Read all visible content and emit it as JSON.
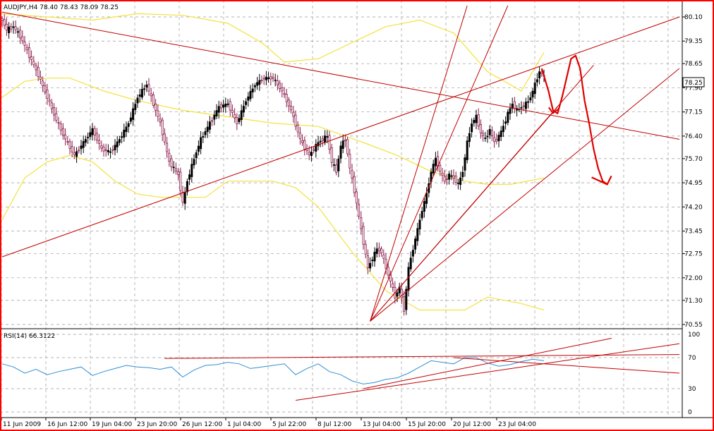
{
  "chart_data": [
    {
      "type": "candlestick",
      "header": "AUDJPY,H4  78.40 78.43 78.09 78.25",
      "ylim": [
        70.55,
        80.45
      ],
      "y_ticks": [
        "80.10",
        "79.35",
        "78.65",
        "77.90",
        "77.15",
        "76.40",
        "75.70",
        "74.95",
        "74.20",
        "73.45",
        "72.75",
        "72.00",
        "71.30",
        "70.55"
      ],
      "current_price": "78.25",
      "x_ticks": [
        "11 Jun 2009",
        "16 Jun 12:00",
        "19 Jun 04:00",
        "23 Jun 20:00",
        "26 Jun 12:00",
        "1 Jul 04:00",
        "5 Jul 22:00",
        "8 Jul 12:00",
        "13 Jul 04:00",
        "15 Jul 20:00",
        "20 Jul 12:00",
        "23 Jul 04:00"
      ],
      "grid": true,
      "series": [
        {
          "kind": "close-path",
          "points": [
            [
              0,
              80.0
            ],
            [
              2,
              79.7
            ],
            [
              5,
              79.8
            ],
            [
              8,
              79.5
            ],
            [
              12,
              78.9
            ],
            [
              16,
              78.3
            ],
            [
              20,
              77.6
            ],
            [
              24,
              76.9
            ],
            [
              28,
              76.3
            ],
            [
              32,
              75.8
            ],
            [
              36,
              76.2
            ],
            [
              40,
              76.6
            ],
            [
              44,
              76.0
            ],
            [
              48,
              75.9
            ],
            [
              52,
              76.3
            ],
            [
              56,
              76.8
            ],
            [
              60,
              77.6
            ],
            [
              64,
              78.0
            ],
            [
              67,
              77.4
            ],
            [
              70,
              76.8
            ],
            [
              74,
              75.6
            ],
            [
              78,
              75.2
            ],
            [
              80,
              74.3
            ],
            [
              82,
              75.0
            ],
            [
              85,
              75.7
            ],
            [
              88,
              76.3
            ],
            [
              92,
              76.8
            ],
            [
              96,
              77.3
            ],
            [
              100,
              77.4
            ],
            [
              104,
              76.8
            ],
            [
              108,
              77.5
            ],
            [
              112,
              78.0
            ],
            [
              116,
              78.2
            ],
            [
              120,
              78.2
            ],
            [
              124,
              77.8
            ],
            [
              128,
              77.2
            ],
            [
              132,
              76.3
            ],
            [
              136,
              75.8
            ],
            [
              140,
              76.2
            ],
            [
              144,
              76.4
            ],
            [
              146,
              75.6
            ],
            [
              148,
              75.3
            ],
            [
              150,
              76.1
            ],
            [
              152,
              76.3
            ],
            [
              154,
              75.4
            ],
            [
              156,
              74.7
            ],
            [
              158,
              73.9
            ],
            [
              160,
              73.1
            ],
            [
              162,
              72.3
            ],
            [
              164,
              72.6
            ],
            [
              166,
              72.9
            ],
            [
              168,
              72.8
            ],
            [
              170,
              72.3
            ],
            [
              172,
              71.9
            ],
            [
              174,
              71.4
            ],
            [
              176,
              71.7
            ],
            [
              178,
              71.0
            ],
            [
              180,
              72.3
            ],
            [
              182,
              72.9
            ],
            [
              184,
              73.5
            ],
            [
              186,
              74.1
            ],
            [
              188,
              74.6
            ],
            [
              190,
              75.3
            ],
            [
              192,
              75.7
            ],
            [
              194,
              75.3
            ],
            [
              196,
              75.0
            ],
            [
              198,
              75.2
            ],
            [
              200,
              75.1
            ],
            [
              202,
              74.9
            ],
            [
              204,
              75.3
            ],
            [
              206,
              76.2
            ],
            [
              208,
              76.8
            ],
            [
              210,
              77.0
            ],
            [
              212,
              76.5
            ],
            [
              214,
              76.3
            ],
            [
              216,
              76.6
            ],
            [
              218,
              76.2
            ],
            [
              220,
              76.4
            ],
            [
              222,
              76.7
            ],
            [
              224,
              77.1
            ],
            [
              226,
              77.4
            ],
            [
              228,
              77.2
            ],
            [
              230,
              77.3
            ],
            [
              232,
              77.4
            ],
            [
              234,
              77.6
            ],
            [
              236,
              78.0
            ],
            [
              238,
              78.4
            ],
            [
              240,
              78.25
            ]
          ]
        },
        {
          "kind": "bollinger-upper",
          "points": [
            [
              0,
              80.2
            ],
            [
              20,
              80.1
            ],
            [
              40,
              80.0
            ],
            [
              60,
              80.2
            ],
            [
              80,
              80.15
            ],
            [
              100,
              79.9
            ],
            [
              115,
              79.3
            ],
            [
              125,
              78.7
            ],
            [
              140,
              78.8
            ],
            [
              155,
              79.3
            ],
            [
              170,
              79.8
            ],
            [
              185,
              80.0
            ],
            [
              200,
              79.6
            ],
            [
              215,
              78.4
            ],
            [
              230,
              77.8
            ],
            [
              240,
              79.0
            ]
          ]
        },
        {
          "kind": "bollinger-middle",
          "points": [
            [
              0,
              77.6
            ],
            [
              10,
              78.1
            ],
            [
              20,
              78.2
            ],
            [
              30,
              78.2
            ],
            [
              45,
              77.8
            ],
            [
              60,
              77.5
            ],
            [
              80,
              77.2
            ],
            [
              100,
              77.0
            ],
            [
              120,
              76.8
            ],
            [
              140,
              76.7
            ],
            [
              160,
              76.2
            ],
            [
              175,
              75.8
            ],
            [
              190,
              75.3
            ],
            [
              205,
              75.0
            ],
            [
              215,
              74.9
            ],
            [
              225,
              74.9
            ],
            [
              240,
              75.1
            ]
          ]
        },
        {
          "kind": "bollinger-lower",
          "points": [
            [
              0,
              73.8
            ],
            [
              10,
              75.1
            ],
            [
              20,
              75.6
            ],
            [
              30,
              75.8
            ],
            [
              40,
              75.6
            ],
            [
              50,
              75.0
            ],
            [
              60,
              74.6
            ],
            [
              70,
              74.5
            ],
            [
              80,
              74.5
            ],
            [
              90,
              74.5
            ],
            [
              100,
              75.0
            ],
            [
              110,
              75.0
            ],
            [
              120,
              75.0
            ],
            [
              130,
              74.8
            ],
            [
              140,
              74.2
            ],
            [
              155,
              72.8
            ],
            [
              170,
              71.6
            ],
            [
              185,
              71.0
            ],
            [
              205,
              71.0
            ],
            [
              215,
              71.4
            ],
            [
              230,
              71.2
            ],
            [
              240,
              71.0
            ]
          ]
        }
      ],
      "drawn_lines": [
        {
          "kind": "trendline",
          "from": [
            0,
            80.25
          ],
          "to": [
            300,
            76.3
          ]
        },
        {
          "kind": "trendline",
          "from": [
            0,
            72.65
          ],
          "to": [
            300,
            80.1
          ]
        },
        {
          "kind": "fan-line",
          "from": [
            163,
            70.65
          ],
          "to": [
            206,
            80.45
          ]
        },
        {
          "kind": "fan-line",
          "from": [
            163,
            70.65
          ],
          "to": [
            224,
            80.45
          ]
        },
        {
          "kind": "fan-line",
          "from": [
            163,
            70.65
          ],
          "to": [
            246,
            77.3
          ]
        },
        {
          "kind": "fan-line",
          "from": [
            163,
            70.65
          ],
          "to": [
            262,
            78.6
          ]
        },
        {
          "kind": "fan-line",
          "from": [
            163,
            70.65
          ],
          "to": [
            300,
            78.5
          ]
        },
        {
          "kind": "annotation-arrow",
          "shape": "hand-drawn",
          "points": [
            [
              239,
              78.5
            ],
            [
              242,
              77.8
            ],
            [
              244,
              77.2
            ],
            [
              246,
              77.1
            ],
            [
              248,
              77.6
            ],
            [
              250,
              78.2
            ],
            [
              252,
              78.8
            ],
            [
              254,
              78.9
            ],
            [
              256,
              78.5
            ],
            [
              258,
              77.5
            ],
            [
              260,
              76.8
            ],
            [
              262,
              76.0
            ],
            [
              264,
              75.4
            ],
            [
              266,
              75.0
            ],
            [
              268,
              74.9
            ]
          ]
        }
      ]
    },
    {
      "type": "line",
      "header": "RSI(14) 66.3122",
      "ylim": [
        0,
        100
      ],
      "y_ticks": [
        "100",
        "70",
        "30",
        "0"
      ],
      "series": [
        {
          "kind": "rsi",
          "points": [
            [
              0,
              62
            ],
            [
              5,
              58
            ],
            [
              10,
              50
            ],
            [
              15,
              55
            ],
            [
              20,
              48
            ],
            [
              25,
              52
            ],
            [
              30,
              55
            ],
            [
              35,
              58
            ],
            [
              40,
              47
            ],
            [
              45,
              52
            ],
            [
              50,
              56
            ],
            [
              55,
              60
            ],
            [
              60,
              58
            ],
            [
              65,
              57
            ],
            [
              70,
              55
            ],
            [
              75,
              58
            ],
            [
              80,
              45
            ],
            [
              85,
              54
            ],
            [
              90,
              60
            ],
            [
              95,
              61
            ],
            [
              100,
              64
            ],
            [
              105,
              62
            ],
            [
              110,
              56
            ],
            [
              115,
              58
            ],
            [
              120,
              60
            ],
            [
              125,
              62
            ],
            [
              130,
              48
            ],
            [
              135,
              56
            ],
            [
              140,
              62
            ],
            [
              145,
              52
            ],
            [
              150,
              48
            ],
            [
              155,
              40
            ],
            [
              160,
              36
            ],
            [
              165,
              38
            ],
            [
              170,
              42
            ],
            [
              175,
              44
            ],
            [
              180,
              50
            ],
            [
              185,
              58
            ],
            [
              190,
              66
            ],
            [
              195,
              64
            ],
            [
              200,
              62
            ],
            [
              205,
              70
            ],
            [
              210,
              70
            ],
            [
              215,
              63
            ],
            [
              220,
              59
            ],
            [
              225,
              61
            ],
            [
              230,
              65
            ],
            [
              235,
              68
            ],
            [
              240,
              66
            ]
          ]
        }
      ],
      "drawn_lines": [
        {
          "kind": "trendline",
          "from": [
            72,
            69
          ],
          "to": [
            300,
            74
          ]
        },
        {
          "kind": "trendline",
          "from": [
            130,
            15
          ],
          "to": [
            300,
            88
          ]
        },
        {
          "kind": "trendline",
          "from": [
            160,
            30
          ],
          "to": [
            270,
            95
          ]
        },
        {
          "kind": "trendline",
          "from": [
            200,
            70
          ],
          "to": [
            300,
            50
          ]
        }
      ]
    }
  ],
  "colors": {
    "frame_border": "#ff0000",
    "candle_bull": "#000000",
    "candle_bear": "#8b1a4a",
    "bollinger": "#f3e23a",
    "drawn_line": "#c00000",
    "rsi_line": "#2f8fd6",
    "grid": "#9a9a9a",
    "price_marker_bg": "#ffffff"
  }
}
